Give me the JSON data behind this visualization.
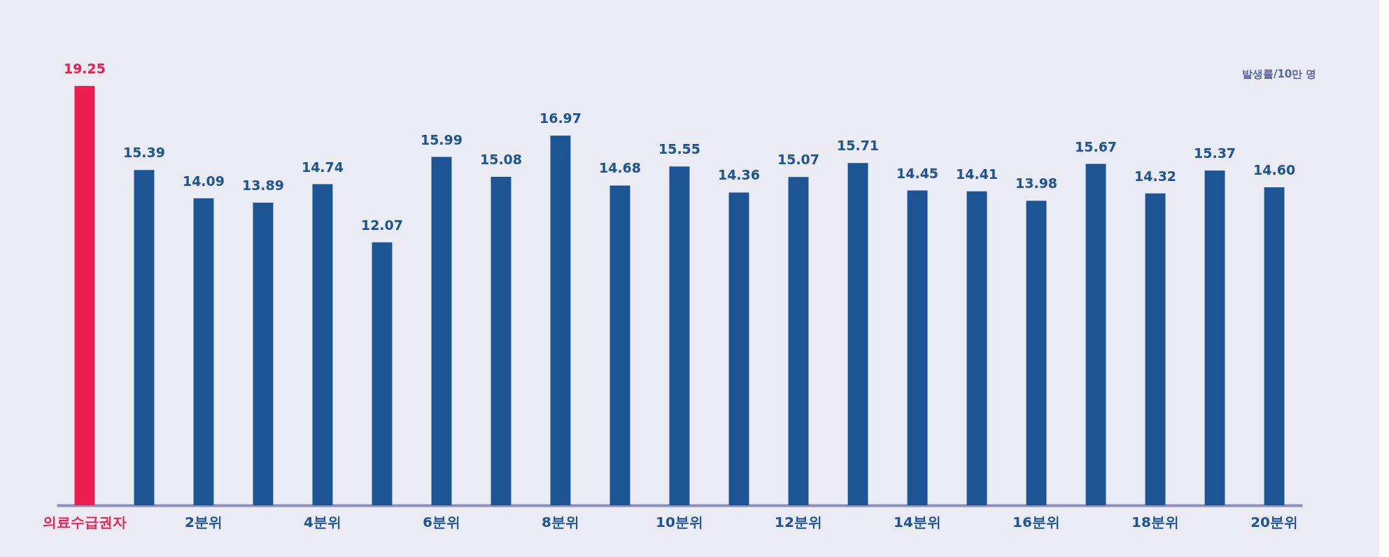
{
  "chart_data": {
    "type": "bar",
    "relative": false,
    "ylabel": "발생률/10만 명",
    "categories": [
      "의료수급권자",
      null,
      "2분위",
      null,
      "4분위",
      null,
      "6분위",
      null,
      "8분위",
      null,
      "10분위",
      null,
      "12분위",
      null,
      "14분위",
      null,
      "16분위",
      null,
      "18분위",
      null,
      "20분위"
    ],
    "values": [
      19.25,
      15.39,
      14.09,
      13.89,
      14.74,
      12.07,
      15.99,
      15.08,
      16.97,
      14.68,
      15.55,
      14.36,
      15.07,
      15.71,
      14.45,
      14.41,
      13.98,
      15.67,
      14.32,
      15.37,
      14.6
    ],
    "colors": [
      "#ec1e50",
      "#1c5494",
      "#1c5494",
      "#1c5494",
      "#1c5494",
      "#1c5494",
      "#1c5494",
      "#1c5494",
      "#1c5494",
      "#1c5494",
      "#1c5494",
      "#1c5494",
      "#1c5494",
      "#1c5494",
      "#1c5494",
      "#1c5494",
      "#1c5494",
      "#1c5494",
      "#1c5494",
      "#1c5494",
      "#1c5494"
    ],
    "value_labels": [
      "19.25",
      "15.39",
      "14.09",
      "13.89",
      "14.74",
      "12.07",
      "15.99",
      "15.08",
      "16.97",
      "14.68",
      "15.55",
      "14.36",
      "15.07",
      "15.71",
      "14.45",
      "14.41",
      "13.98",
      "15.67",
      "14.32",
      "15.37",
      "14.60"
    ]
  }
}
